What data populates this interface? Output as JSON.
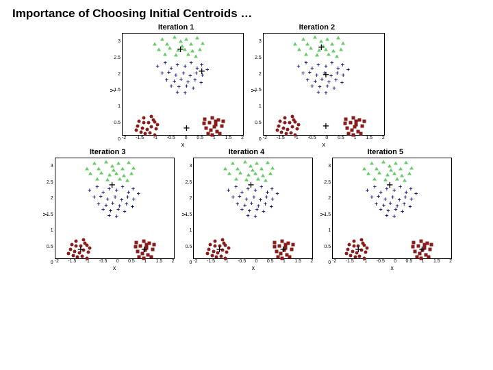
{
  "title": "Importance of Choosing Initial Centroids …",
  "title_fontsize": 17,
  "background_color": "#ffffff",
  "xlabel": "x",
  "ylabel": "y",
  "row1_plot": {
    "w": 178,
    "h": 150
  },
  "row2_plot": {
    "w": 175,
    "h": 148
  },
  "xlim": [
    -2,
    2
  ],
  "ylim": [
    0,
    3
  ],
  "xticks": [
    -2,
    -1.5,
    -1,
    -0.5,
    0,
    0.5,
    1,
    1.5,
    2
  ],
  "yticks": [
    3,
    2.5,
    2,
    1.5,
    1,
    0.5,
    0
  ],
  "tick_fontsize": 7,
  "label_fontsize": 9,
  "panel_title_fontsize": 11,
  "colors": {
    "green": "#66cc66",
    "navy": "#1a1a8a",
    "maroon": "#8b1a1a",
    "centroid": "#000000"
  },
  "marker_size": 5,
  "plus_size": 7,
  "centroid_glyph": "+",
  "clusters": {
    "green": {
      "shape": "tri",
      "points": [
        [
          -0.95,
          2.7
        ],
        [
          -0.7,
          2.85
        ],
        [
          -0.55,
          2.7
        ],
        [
          -0.3,
          2.9
        ],
        [
          -0.1,
          2.78
        ],
        [
          0.1,
          2.85
        ],
        [
          0.25,
          2.7
        ],
        [
          0.45,
          2.88
        ],
        [
          0.62,
          2.72
        ],
        [
          -0.82,
          2.55
        ],
        [
          -0.45,
          2.58
        ],
        [
          -0.18,
          2.52
        ],
        [
          0.05,
          2.55
        ],
        [
          0.3,
          2.5
        ],
        [
          0.55,
          2.55
        ],
        [
          -0.6,
          2.4
        ],
        [
          -0.25,
          2.38
        ],
        [
          0.15,
          2.4
        ],
        [
          0.4,
          2.35
        ],
        [
          -0.05,
          2.65
        ]
      ]
    },
    "navy": {
      "shape": "plus",
      "points": [
        [
          -0.85,
          2.05
        ],
        [
          -0.6,
          2.15
        ],
        [
          -0.4,
          2.0
        ],
        [
          -0.2,
          2.1
        ],
        [
          0.05,
          2.05
        ],
        [
          0.25,
          2.15
        ],
        [
          0.45,
          2.0
        ],
        [
          0.6,
          2.1
        ],
        [
          0.78,
          1.95
        ],
        [
          -0.7,
          1.85
        ],
        [
          -0.48,
          1.88
        ],
        [
          -0.25,
          1.8
        ],
        [
          0.0,
          1.85
        ],
        [
          0.22,
          1.78
        ],
        [
          0.42,
          1.85
        ],
        [
          0.62,
          1.8
        ],
        [
          -0.55,
          1.65
        ],
        [
          -0.3,
          1.62
        ],
        [
          -0.08,
          1.68
        ],
        [
          0.15,
          1.6
        ],
        [
          0.38,
          1.65
        ],
        [
          0.58,
          1.58
        ],
        [
          -0.4,
          1.48
        ],
        [
          -0.15,
          1.45
        ],
        [
          0.1,
          1.48
        ],
        [
          0.32,
          1.42
        ],
        [
          -0.2,
          1.3
        ],
        [
          0.05,
          1.28
        ]
      ]
    },
    "maroonL": {
      "shape": "dot",
      "points": [
        [
          -1.45,
          0.45
        ],
        [
          -1.3,
          0.55
        ],
        [
          -1.15,
          0.4
        ],
        [
          -1.05,
          0.58
        ],
        [
          -0.95,
          0.42
        ],
        [
          -1.5,
          0.3
        ],
        [
          -1.35,
          0.25
        ],
        [
          -1.2,
          0.2
        ],
        [
          -1.05,
          0.28
        ],
        [
          -0.9,
          0.22
        ],
        [
          -1.4,
          0.12
        ],
        [
          -1.25,
          0.08
        ],
        [
          -1.1,
          0.1
        ],
        [
          -0.95,
          0.05
        ],
        [
          -1.55,
          0.18
        ],
        [
          -1.0,
          0.48
        ],
        [
          -1.3,
          0.4
        ],
        [
          -0.85,
          0.35
        ]
      ]
    },
    "maroonR": {
      "shape": "sq",
      "points": [
        [
          0.7,
          0.5
        ],
        [
          0.85,
          0.4
        ],
        [
          0.95,
          0.55
        ],
        [
          1.05,
          0.35
        ],
        [
          1.15,
          0.48
        ],
        [
          1.25,
          0.3
        ],
        [
          0.75,
          0.25
        ],
        [
          0.9,
          0.18
        ],
        [
          1.0,
          0.28
        ],
        [
          1.1,
          0.15
        ],
        [
          1.2,
          0.08
        ],
        [
          0.8,
          0.08
        ],
        [
          0.95,
          0.05
        ],
        [
          1.05,
          0.45
        ],
        [
          1.3,
          0.45
        ],
        [
          0.68,
          0.38
        ]
      ]
    }
  },
  "panels": [
    {
      "title": "Iteration 1",
      "centroids": [
        [
          -0.1,
          2.55
        ],
        [
          0.6,
          1.9
        ],
        [
          0.1,
          0.25
        ]
      ],
      "assign": {
        "green": "green",
        "navy": "navy",
        "maroonL": "maroon",
        "maroonR": "maroon"
      }
    },
    {
      "title": "Iteration 2",
      "centroids": [
        [
          -0.1,
          2.6
        ],
        [
          0.05,
          1.8
        ],
        [
          0.05,
          0.3
        ]
      ],
      "assign": {
        "green": "green",
        "navy": "navy",
        "maroonL": "maroon",
        "maroonR": "maroon"
      }
    },
    {
      "title": "Iteration 3",
      "centroids": [
        [
          -0.1,
          2.2
        ],
        [
          -1.15,
          0.3
        ],
        [
          0.98,
          0.3
        ]
      ],
      "assign": {
        "green": "green",
        "navy": "navy",
        "maroonL": "maroon",
        "maroonR": "maroon"
      }
    },
    {
      "title": "Iteration 4",
      "centroids": [
        [
          -0.1,
          2.2
        ],
        [
          -1.15,
          0.3
        ],
        [
          0.98,
          0.3
        ]
      ],
      "assign": {
        "green": "green",
        "navy": "navy",
        "maroonL": "maroon",
        "maroonR": "maroon"
      }
    },
    {
      "title": "Iteration 5",
      "centroids": [
        [
          -0.1,
          2.2
        ],
        [
          -1.15,
          0.3
        ],
        [
          0.98,
          0.3
        ]
      ],
      "assign": {
        "green": "green",
        "navy": "navy",
        "maroonL": "maroon",
        "maroonR": "maroon"
      }
    }
  ],
  "layout": {
    "rows": [
      [
        0,
        1
      ],
      [
        2,
        3,
        4
      ]
    ]
  }
}
